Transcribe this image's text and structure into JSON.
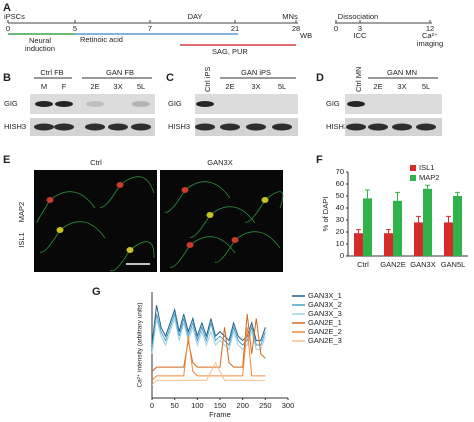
{
  "panel_a": {
    "letter": "A",
    "start": "iPSCs",
    "day": "DAY",
    "mns": "MNs",
    "dissociation": "Dissociation",
    "days": [
      "0",
      "5",
      "7",
      "21",
      "28"
    ],
    "post_days": [
      "0",
      "3",
      "12"
    ],
    "neural": [
      "Neural",
      "induction"
    ],
    "retinoic": "Retinoic acid",
    "sag": "SAG, PUR",
    "wb": "WB",
    "icc": "ICC",
    "imaging": [
      "Ca²⁺",
      "imaging"
    ]
  },
  "panel_b": {
    "letter": "B",
    "groups": [
      "Ctrl FB",
      "GAN FB"
    ],
    "lanes": [
      "M",
      "F",
      "2E",
      "3X",
      "5L"
    ],
    "rows": [
      "GIG",
      "HISH3"
    ]
  },
  "panel_c": {
    "letter": "C",
    "groups": [
      "Ctrl iPS",
      "GAN iPS"
    ],
    "lanes": [
      "2E",
      "3X",
      "5L"
    ],
    "rows": [
      "GIG",
      "HISH3"
    ]
  },
  "panel_d": {
    "letter": "D",
    "groups": [
      "Ctrl MN",
      "GAN MN"
    ],
    "lanes": [
      "2E",
      "3X",
      "5L"
    ],
    "rows": [
      "GIG",
      "HISH3"
    ]
  },
  "panel_e": {
    "letter": "E",
    "titles": [
      "Ctrl",
      "GAN3X"
    ],
    "stain": [
      "ISL1",
      "MAP2"
    ]
  },
  "chart_data": [
    {
      "type": "bar",
      "panel": "F",
      "categories": [
        "Ctrl",
        "GAN2E",
        "GAN3X",
        "GAN5L"
      ],
      "series": [
        {
          "name": "ISL1",
          "color": "#d62b2b",
          "values": [
            19,
            19,
            28,
            28
          ],
          "errors": [
            3,
            3,
            5,
            5
          ]
        },
        {
          "name": "MAP2",
          "color": "#2fb34a",
          "values": [
            48,
            46,
            56,
            50
          ],
          "errors": [
            7,
            7,
            3,
            3
          ]
        }
      ],
      "ylabel": "% of DAPI",
      "ylim": [
        0,
        70
      ],
      "yticks": [
        0,
        10,
        20,
        30,
        40,
        50,
        60,
        70
      ],
      "legend": "top-right"
    },
    {
      "type": "line",
      "panel": "G",
      "x": [
        0,
        10,
        20,
        30,
        40,
        50,
        60,
        70,
        80,
        90,
        100,
        110,
        120,
        130,
        140,
        150,
        160,
        170,
        180,
        190,
        200,
        210,
        220,
        230,
        240,
        250
      ],
      "series": [
        {
          "name": "GAN3X_1",
          "color": "#1f5f8b",
          "values": [
            6,
            10.5,
            8,
            7,
            8.5,
            10,
            7.5,
            9.5,
            7.5,
            9,
            7,
            8.5,
            7,
            9,
            7,
            7.5,
            7,
            6.5,
            8.5,
            7,
            6.5,
            7,
            8.5,
            6.5,
            6.5,
            8
          ]
        },
        {
          "name": "GAN3X_2",
          "color": "#4a9fc8",
          "values": [
            5.5,
            9.5,
            7.5,
            6.5,
            8,
            9.5,
            7,
            9,
            7,
            8.5,
            6.5,
            8,
            6.5,
            8.5,
            6.5,
            7,
            6.5,
            6,
            8,
            6.5,
            6,
            6.5,
            8,
            6,
            6,
            7.5
          ]
        },
        {
          "name": "GAN3X_3",
          "color": "#9fd0e6",
          "values": [
            5,
            9,
            7,
            6,
            7.5,
            9,
            6.5,
            8.5,
            6.5,
            8,
            6,
            7.5,
            6,
            7.5,
            6,
            6.5,
            6,
            5.5,
            7.5,
            6,
            5.5,
            6,
            7.5,
            5.5,
            5.5,
            7
          ]
        },
        {
          "name": "GAN2E_1",
          "color": "#d2691e",
          "values": [
            3,
            3.5,
            3.5,
            3.5,
            3.5,
            3.5,
            3.5,
            3.5,
            6.5,
            4,
            3.5,
            3.5,
            3.5,
            3.5,
            3.5,
            3.5,
            8,
            4,
            3.5,
            3.5,
            3.5,
            9.5,
            5,
            9,
            5,
            4.5
          ]
        },
        {
          "name": "GAN2E_2",
          "color": "#f08a3c",
          "values": [
            2,
            2.5,
            2.5,
            2.5,
            2.5,
            2.5,
            2.5,
            2.5,
            7,
            3,
            2.5,
            2.5,
            2.5,
            2.5,
            2.5,
            2.5,
            2.5,
            2.5,
            2.5,
            2.5,
            2.5,
            8,
            2.5,
            2.5,
            2.5,
            2.5
          ]
        },
        {
          "name": "GAN2E_3",
          "color": "#f6c08f",
          "values": [
            1.5,
            2,
            2,
            2,
            2,
            2,
            2,
            2,
            2,
            2,
            2,
            2,
            2,
            3,
            4,
            3,
            2,
            2,
            2,
            2,
            2,
            2,
            2,
            2,
            2,
            2
          ]
        }
      ],
      "xlabel": "Frame",
      "ylabel": "Ca²⁺ intensity (arbitrary units)",
      "xlim": [
        0,
        300
      ],
      "xticks": [
        0,
        50,
        100,
        150,
        200,
        250,
        300
      ],
      "ylim": [
        0,
        12
      ],
      "legend": "right"
    }
  ]
}
